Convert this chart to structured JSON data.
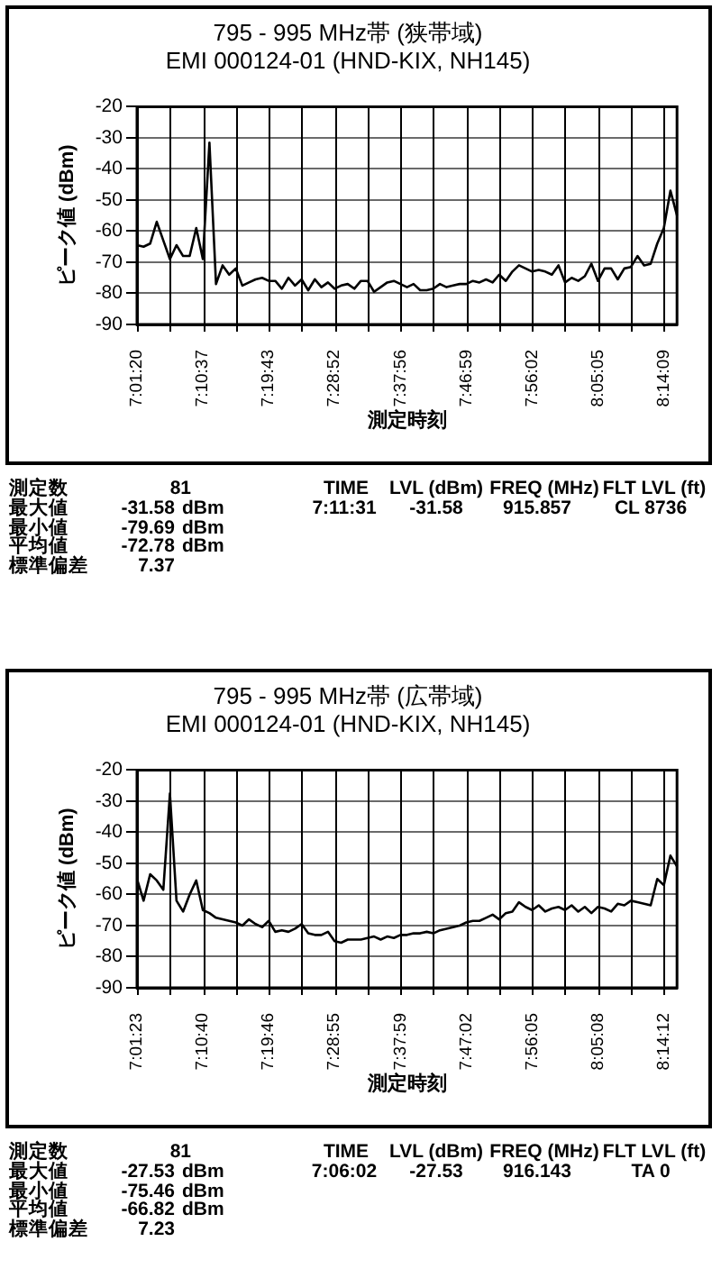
{
  "chart_data": [
    {
      "type": "line",
      "title": "795 - 995 MHz帯 (狭帯域)",
      "subtitle": "EMI 000124-01 (HND-KIX, NH145)",
      "xlabel": "測定時刻",
      "ylabel": "ピーク値 (dBm)",
      "categories": [
        "7:01:20",
        null,
        null,
        null,
        null,
        null,
        null,
        null,
        null,
        null,
        "7:10:37",
        null,
        null,
        null,
        null,
        null,
        null,
        null,
        null,
        null,
        "7:19:43",
        null,
        null,
        null,
        null,
        null,
        null,
        null,
        null,
        null,
        "7:28:52",
        null,
        null,
        null,
        null,
        null,
        null,
        null,
        null,
        null,
        "7:37:56",
        null,
        null,
        null,
        null,
        null,
        null,
        null,
        null,
        null,
        "7:46:59",
        null,
        null,
        null,
        null,
        null,
        null,
        null,
        null,
        null,
        "7:56:02",
        null,
        null,
        null,
        null,
        null,
        null,
        null,
        null,
        null,
        "8:05:05",
        null,
        null,
        null,
        null,
        null,
        null,
        null,
        null,
        null,
        "8:14:09",
        null,
        null
      ],
      "values": [
        -64.5,
        -65,
        -64,
        -57,
        -63,
        -69,
        -64.5,
        -68,
        -68,
        -59,
        -69,
        -31.58,
        -77,
        -71,
        -74,
        -72,
        -77.5,
        -76.5,
        -75.5,
        -75,
        -76,
        -76,
        -78.5,
        -75,
        -77.5,
        -75.5,
        -79,
        -75.5,
        -78,
        -76.5,
        -78.5,
        -77.5,
        -77,
        -78.5,
        -76,
        -76,
        -79.5,
        -78,
        -76.5,
        -76,
        -77,
        -78,
        -77,
        -79,
        -79,
        -78.5,
        -77,
        -78,
        -77.5,
        -77,
        -77,
        -76,
        -76.5,
        -75.5,
        -76.5,
        -74,
        -76,
        -73,
        -71,
        -72,
        -73,
        -72.5,
        -73,
        -74,
        -71,
        -76.5,
        -75,
        -76,
        -74.5,
        -70.5,
        -76,
        -72,
        -72,
        -75.5,
        -72,
        -71.5,
        -68,
        -71,
        -70.5,
        -64,
        -59,
        -47,
        -55
      ],
      "color": "#000000",
      "ylim": [
        -90,
        -20
      ],
      "yticks": [
        -90,
        -80,
        -70,
        -60,
        -50,
        -40,
        -30,
        -20
      ],
      "grid": true,
      "annotations": [
        "測定数",
        "81",
        "TIME",
        "LVL (dBm)",
        "FREQ (MHz)",
        "FLT LVL (ft)",
        "最大値",
        "-31.58",
        "dBm",
        "7:11:31",
        "-31.58",
        "915.857",
        "CL 8736",
        "最小値",
        "-79.69",
        "dBm",
        "平均値",
        "-72.78",
        "dBm",
        "標準偏差",
        "7.37"
      ]
    },
    {
      "type": "line",
      "title": "795 - 995 MHz帯 (広帯域)",
      "subtitle": "EMI 000124-01 (HND-KIX, NH145)",
      "xlabel": "測定時刻",
      "ylabel": "ピーク値 (dBm)",
      "categories": [
        "7:01:23",
        null,
        null,
        null,
        null,
        null,
        null,
        null,
        null,
        null,
        "7:10:40",
        null,
        null,
        null,
        null,
        null,
        null,
        null,
        null,
        null,
        "7:19:46",
        null,
        null,
        null,
        null,
        null,
        null,
        null,
        null,
        null,
        "7:28:55",
        null,
        null,
        null,
        null,
        null,
        null,
        null,
        null,
        null,
        "7:37:59",
        null,
        null,
        null,
        null,
        null,
        null,
        null,
        null,
        null,
        "7:47:02",
        null,
        null,
        null,
        null,
        null,
        null,
        null,
        null,
        null,
        "7:56:05",
        null,
        null,
        null,
        null,
        null,
        null,
        null,
        null,
        null,
        "8:05:08",
        null,
        null,
        null,
        null,
        null,
        null,
        null,
        null,
        null,
        "8:14:12",
        null,
        null
      ],
      "values": [
        -55,
        -62,
        -53.5,
        -55.5,
        -58.5,
        -27.53,
        -62,
        -65.5,
        -60,
        -55.5,
        -65,
        -66,
        -67.5,
        -68,
        -68.5,
        -69,
        -70,
        -68,
        -69.5,
        -70.5,
        -68.5,
        -72,
        -71.5,
        -72,
        -71,
        -69.5,
        -72.5,
        -73,
        -73,
        -72,
        -75,
        -75.5,
        -74.5,
        -74.5,
        -74.5,
        -74,
        -73.5,
        -74.5,
        -73.5,
        -74,
        -73,
        -73,
        -72.5,
        -72.5,
        -72,
        -72.5,
        -71.5,
        -71,
        -70.5,
        -70,
        -69,
        -68.5,
        -68.5,
        -67.5,
        -66.5,
        -68,
        -66,
        -65.5,
        -62.5,
        -64,
        -65,
        -63.5,
        -65.5,
        -64.5,
        -64,
        -65,
        -63.5,
        -65.5,
        -64,
        -66,
        -64,
        -64.5,
        -65.5,
        -63,
        -63.5,
        -62,
        -62.5,
        -63,
        -63.5,
        -55,
        -57,
        -47.5,
        -51
      ],
      "color": "#000000",
      "ylim": [
        -90,
        -20
      ],
      "yticks": [
        -90,
        -80,
        -70,
        -60,
        -50,
        -40,
        -30,
        -20
      ],
      "grid": true,
      "annotations": [
        "測定数",
        "81",
        "TIME",
        "LVL (dBm)",
        "FREQ (MHz)",
        "FLT LVL (ft)",
        "最大値",
        "-27.53",
        "dBm",
        "7:06:02",
        "-27.53",
        "916.143",
        "TA 0",
        "最小値",
        "-75.46",
        "dBm",
        "平均値",
        "-66.82",
        "dBm",
        "標準偏差",
        "7.23"
      ]
    }
  ]
}
